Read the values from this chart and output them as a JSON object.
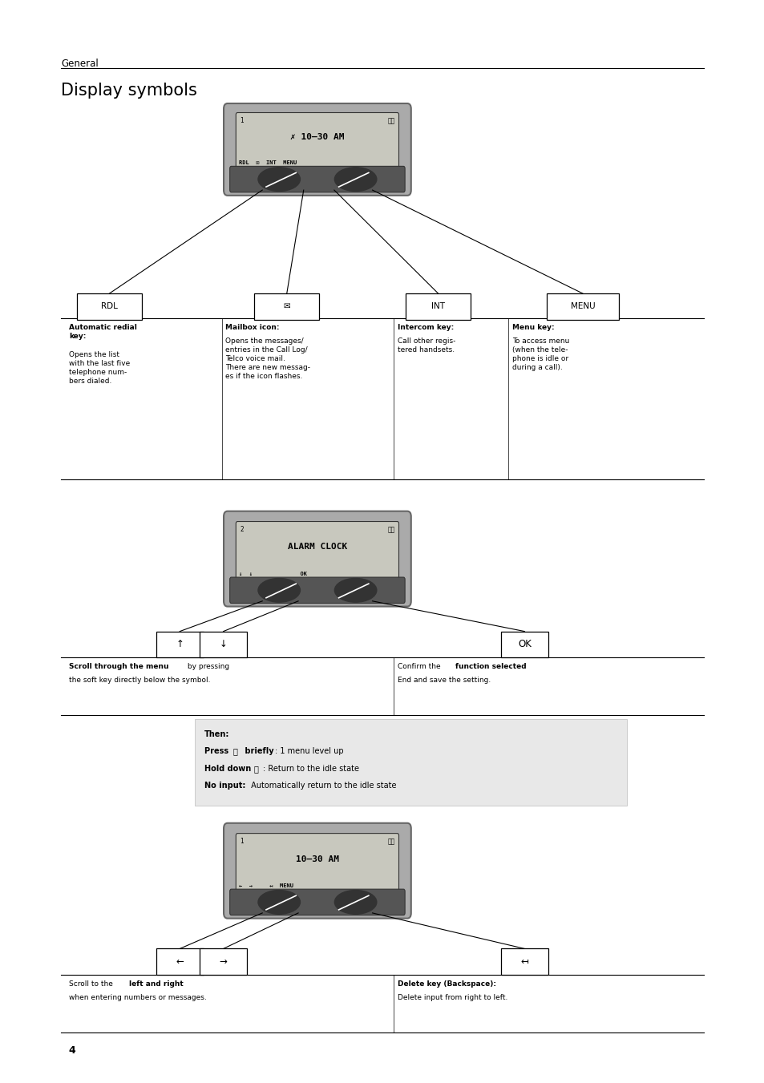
{
  "page_bg": "#ffffff",
  "section_label": "General",
  "title": "Display symbols",
  "page_number": "4"
}
